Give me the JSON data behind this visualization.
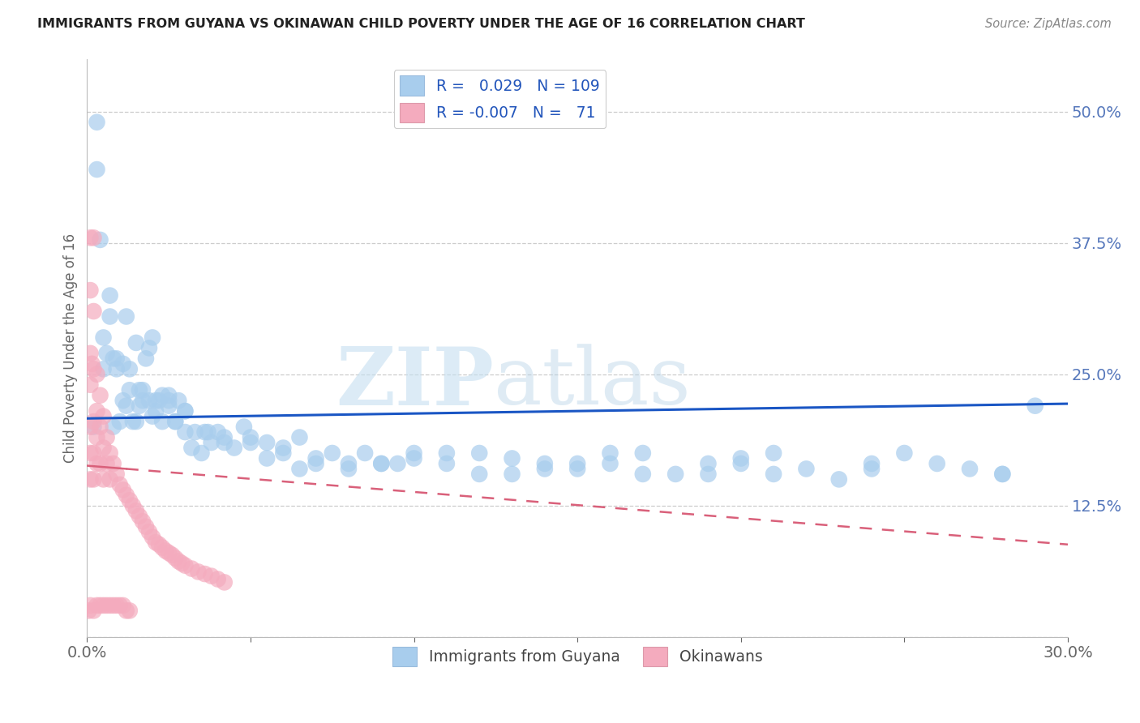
{
  "title": "IMMIGRANTS FROM GUYANA VS OKINAWAN CHILD POVERTY UNDER THE AGE OF 16 CORRELATION CHART",
  "source": "Source: ZipAtlas.com",
  "ylabel": "Child Poverty Under the Age of 16",
  "xlim": [
    0.0,
    0.3
  ],
  "ylim": [
    0.0,
    0.55
  ],
  "r_blue": 0.029,
  "n_blue": 109,
  "r_pink": -0.007,
  "n_pink": 71,
  "legend_label_blue": "Immigrants from Guyana",
  "legend_label_pink": "Okinawans",
  "blue_color": "#A8CDED",
  "pink_color": "#F4ABBE",
  "blue_line_color": "#1A56C4",
  "pink_line_color": "#D9607A",
  "watermark_zip": "ZIP",
  "watermark_atlas": "atlas",
  "blue_line_start_y": 0.208,
  "blue_line_end_y": 0.222,
  "pink_line_start_y": 0.163,
  "pink_line_end_y": 0.088,
  "blue_x": [
    0.002,
    0.003,
    0.004,
    0.005,
    0.006,
    0.007,
    0.008,
    0.009,
    0.01,
    0.011,
    0.012,
    0.013,
    0.014,
    0.015,
    0.016,
    0.017,
    0.018,
    0.019,
    0.02,
    0.021,
    0.022,
    0.023,
    0.025,
    0.027,
    0.028,
    0.03,
    0.032,
    0.035,
    0.038,
    0.04,
    0.045,
    0.05,
    0.055,
    0.06,
    0.065,
    0.07,
    0.08,
    0.09,
    0.1,
    0.11,
    0.12,
    0.13,
    0.14,
    0.15,
    0.16,
    0.17,
    0.18,
    0.19,
    0.2,
    0.21,
    0.22,
    0.23,
    0.24,
    0.25,
    0.26,
    0.27,
    0.28,
    0.29,
    0.003,
    0.005,
    0.007,
    0.009,
    0.011,
    0.013,
    0.015,
    0.017,
    0.019,
    0.021,
    0.023,
    0.025,
    0.027,
    0.03,
    0.033,
    0.037,
    0.042,
    0.048,
    0.055,
    0.065,
    0.075,
    0.085,
    0.095,
    0.11,
    0.13,
    0.15,
    0.17,
    0.19,
    0.21,
    0.24,
    0.008,
    0.012,
    0.016,
    0.02,
    0.025,
    0.03,
    0.036,
    0.042,
    0.05,
    0.06,
    0.07,
    0.08,
    0.09,
    0.1,
    0.12,
    0.14,
    0.16,
    0.2,
    0.28
  ],
  "blue_y": [
    0.2,
    0.445,
    0.378,
    0.285,
    0.27,
    0.325,
    0.265,
    0.265,
    0.205,
    0.225,
    0.305,
    0.235,
    0.205,
    0.205,
    0.22,
    0.225,
    0.265,
    0.275,
    0.285,
    0.215,
    0.225,
    0.23,
    0.22,
    0.205,
    0.225,
    0.195,
    0.18,
    0.175,
    0.185,
    0.195,
    0.18,
    0.19,
    0.17,
    0.18,
    0.16,
    0.165,
    0.16,
    0.165,
    0.17,
    0.165,
    0.155,
    0.155,
    0.16,
    0.16,
    0.165,
    0.155,
    0.155,
    0.155,
    0.17,
    0.155,
    0.16,
    0.15,
    0.16,
    0.175,
    0.165,
    0.16,
    0.155,
    0.22,
    0.49,
    0.255,
    0.305,
    0.255,
    0.26,
    0.255,
    0.28,
    0.235,
    0.225,
    0.225,
    0.205,
    0.225,
    0.205,
    0.215,
    0.195,
    0.195,
    0.185,
    0.2,
    0.185,
    0.19,
    0.175,
    0.175,
    0.165,
    0.175,
    0.17,
    0.165,
    0.175,
    0.165,
    0.175,
    0.165,
    0.2,
    0.22,
    0.235,
    0.21,
    0.23,
    0.215,
    0.195,
    0.19,
    0.185,
    0.175,
    0.17,
    0.165,
    0.165,
    0.175,
    0.175,
    0.165,
    0.175,
    0.165,
    0.155
  ],
  "pink_x": [
    0.0005,
    0.001,
    0.001,
    0.001,
    0.001,
    0.001,
    0.001,
    0.001,
    0.001,
    0.0015,
    0.002,
    0.002,
    0.002,
    0.002,
    0.002,
    0.002,
    0.002,
    0.003,
    0.003,
    0.003,
    0.003,
    0.003,
    0.004,
    0.004,
    0.004,
    0.004,
    0.005,
    0.005,
    0.005,
    0.005,
    0.006,
    0.006,
    0.006,
    0.007,
    0.007,
    0.007,
    0.008,
    0.008,
    0.009,
    0.009,
    0.01,
    0.01,
    0.011,
    0.011,
    0.012,
    0.012,
    0.013,
    0.013,
    0.014,
    0.015,
    0.016,
    0.017,
    0.018,
    0.019,
    0.02,
    0.021,
    0.022,
    0.023,
    0.024,
    0.025,
    0.026,
    0.027,
    0.028,
    0.029,
    0.03,
    0.032,
    0.034,
    0.036,
    0.038,
    0.04,
    0.042
  ],
  "pink_y": [
    0.025,
    0.38,
    0.33,
    0.27,
    0.24,
    0.2,
    0.175,
    0.15,
    0.03,
    0.26,
    0.38,
    0.31,
    0.255,
    0.205,
    0.175,
    0.15,
    0.025,
    0.25,
    0.215,
    0.19,
    0.165,
    0.03,
    0.23,
    0.2,
    0.165,
    0.03,
    0.21,
    0.18,
    0.15,
    0.03,
    0.19,
    0.165,
    0.03,
    0.175,
    0.15,
    0.03,
    0.165,
    0.03,
    0.155,
    0.03,
    0.145,
    0.03,
    0.14,
    0.03,
    0.135,
    0.025,
    0.13,
    0.025,
    0.125,
    0.12,
    0.115,
    0.11,
    0.105,
    0.1,
    0.095,
    0.09,
    0.088,
    0.085,
    0.082,
    0.08,
    0.078,
    0.075,
    0.072,
    0.07,
    0.068,
    0.065,
    0.062,
    0.06,
    0.058,
    0.055,
    0.052
  ]
}
